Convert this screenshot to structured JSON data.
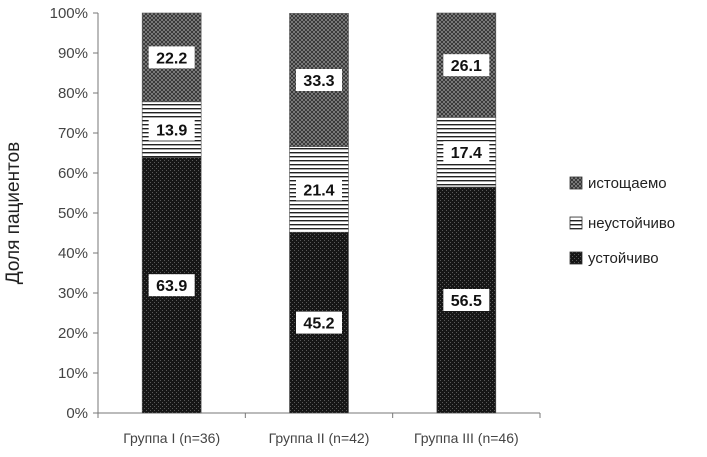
{
  "chart_data": {
    "type": "bar",
    "stacked": true,
    "percent": true,
    "categories": [
      "Группа I (n=36)",
      "Группа II (n=42)",
      "Группа III (n=46)"
    ],
    "series": [
      {
        "name": "устойчиво",
        "values": [
          63.9,
          45.2,
          56.5
        ],
        "pattern": "dense-dots"
      },
      {
        "name": "неустойчиво",
        "values": [
          13.9,
          21.4,
          17.4
        ],
        "pattern": "horizontal-lines"
      },
      {
        "name": "истощаемо",
        "values": [
          22.2,
          33.3,
          26.1
        ],
        "pattern": "crosshatch"
      }
    ],
    "data_labels": [
      [
        "63.9",
        "45.2",
        "56.5"
      ],
      [
        "13.9",
        "21.4",
        "17.4"
      ],
      [
        "22.2",
        "33.3",
        "26.1"
      ]
    ],
    "ylabel": "Доля пациентов",
    "xlabel": "",
    "title": "",
    "ylim": [
      0,
      100
    ],
    "y_ticks": [
      "0%",
      "10%",
      "20%",
      "30%",
      "40%",
      "50%",
      "60%",
      "70%",
      "80%",
      "90%",
      "100%"
    ],
    "legend_order": [
      2,
      1,
      0
    ],
    "legend_position": "right",
    "grid": false,
    "colors": {
      "bar_dark": "#1a1a1a",
      "axis": "#555555",
      "text": "#333333"
    }
  }
}
